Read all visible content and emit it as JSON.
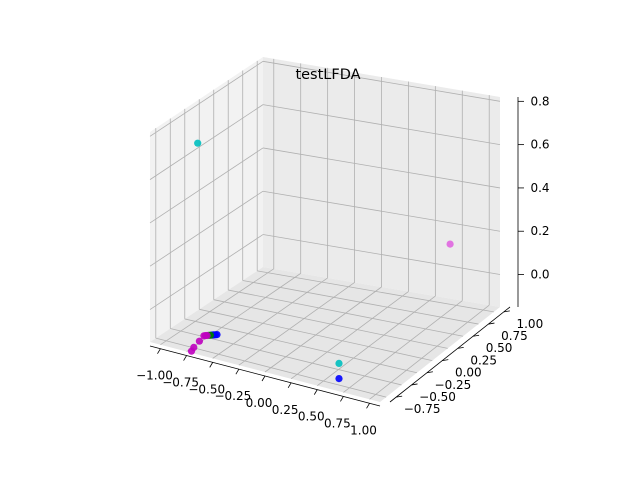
{
  "chart_data": {
    "type": "scatter",
    "title": "testLFDA",
    "xlabel": "",
    "ylabel": "",
    "zlabel": "",
    "grid": true,
    "projection": "3d",
    "xlim": [
      -1.1,
      1.1
    ],
    "ylim": [
      -0.85,
      1.1
    ],
    "zlim": [
      -0.15,
      0.82
    ],
    "x_ticks": [
      "−1.00",
      "−0.75",
      "−0.50",
      "−0.25",
      "0.00",
      "0.25",
      "0.50",
      "0.75",
      "1.00"
    ],
    "y_ticks": [
      "−0.75",
      "−0.50",
      "−0.25",
      "0.00",
      "0.25",
      "0.50",
      "0.75",
      "1.00"
    ],
    "z_ticks": [
      "0.0",
      "0.2",
      "0.4",
      "0.6",
      "0.8"
    ],
    "points": [
      {
        "x": -0.7,
        "y": -0.75,
        "z": 0.8,
        "color": "#00bfbf"
      },
      {
        "x": 0.95,
        "y": 0.55,
        "z": 0.25,
        "color": "#e066e0"
      },
      {
        "x": 0.65,
        "y": -0.75,
        "z": -0.05,
        "color": "#00bfbf"
      },
      {
        "x": 0.65,
        "y": -0.75,
        "z": -0.12,
        "color": "#0000ff"
      },
      {
        "x": -0.6,
        "y": -0.6,
        "z": -0.1,
        "color": "#0000ff"
      },
      {
        "x": -0.61,
        "y": -0.61,
        "z": -0.1,
        "color": "#0000ff"
      },
      {
        "x": -0.62,
        "y": -0.62,
        "z": -0.1,
        "color": "#0000ff"
      },
      {
        "x": -0.63,
        "y": -0.63,
        "z": -0.1,
        "color": "#0000ff"
      },
      {
        "x": -0.64,
        "y": -0.64,
        "z": -0.1,
        "color": "#008000"
      },
      {
        "x": -0.65,
        "y": -0.65,
        "z": -0.1,
        "color": "#008000"
      },
      {
        "x": -0.66,
        "y": -0.66,
        "z": -0.1,
        "color": "#bf00bf"
      },
      {
        "x": -0.67,
        "y": -0.67,
        "z": -0.1,
        "color": "#bf00bf"
      },
      {
        "x": -0.68,
        "y": -0.68,
        "z": -0.1,
        "color": "#bf00bf"
      },
      {
        "x": -0.7,
        "y": -0.72,
        "z": -0.12,
        "color": "#bf00bf"
      },
      {
        "x": -0.72,
        "y": -0.78,
        "z": -0.14,
        "color": "#bf00bf"
      },
      {
        "x": -0.72,
        "y": -0.82,
        "z": -0.15,
        "color": "#bf00bf"
      }
    ]
  }
}
